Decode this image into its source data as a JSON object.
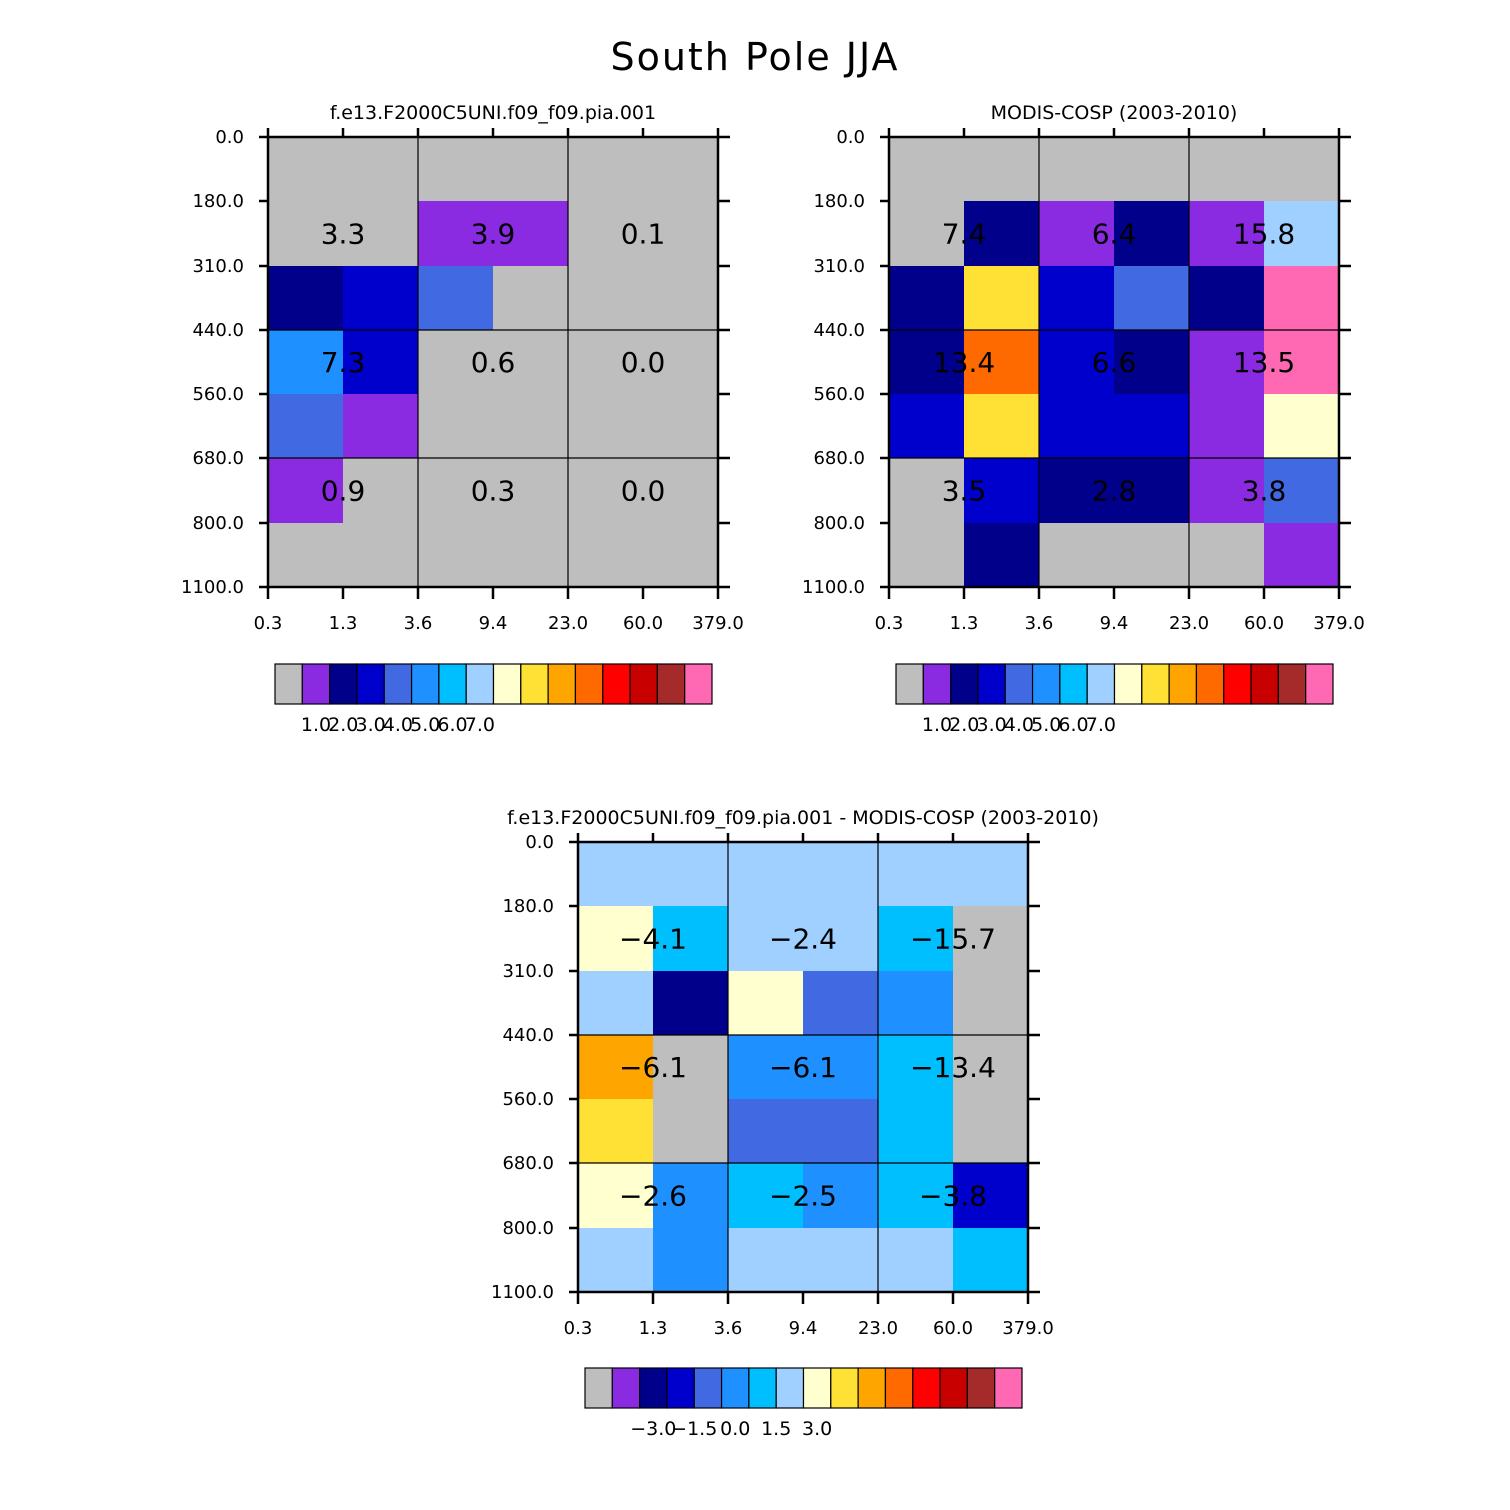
{
  "figure": {
    "title": "South Pole JJA"
  },
  "palette": {
    "colors": [
      "#bebebe",
      "#8a2be2",
      "#00008b",
      "#0000cd",
      "#4169e1",
      "#1e90ff",
      "#00bfff",
      "#a0d0ff",
      "#ffffd0",
      "#ffe135",
      "#ffa500",
      "#ff6a00",
      "#ff0000",
      "#c80000",
      "#a52a2a",
      "#ff69b4"
    ]
  },
  "chart_data": [
    {
      "type": "heatmap",
      "title": "f.e13.F2000C5UNI.f09_f09.pia.001",
      "x_ticks": [
        "0.3",
        "1.3",
        "3.6",
        "9.4",
        "23.0",
        "60.0",
        "379.0"
      ],
      "y_ticks": [
        "0.0",
        "180.0",
        "310.0",
        "440.0",
        "560.0",
        "680.0",
        "800.0",
        "1100.0"
      ],
      "cells": [
        [
          0,
          0,
          0,
          0,
          0,
          0
        ],
        [
          0,
          0,
          1,
          1,
          0,
          0
        ],
        [
          2,
          3,
          4,
          0,
          0,
          0
        ],
        [
          5,
          3,
          0,
          0,
          0,
          0
        ],
        [
          4,
          1,
          0,
          0,
          0,
          0
        ],
        [
          1,
          0,
          0,
          0,
          0,
          0
        ],
        [
          0,
          0,
          0,
          0,
          0,
          0
        ]
      ],
      "block_labels": [
        [
          "3.3",
          "3.9",
          "0.1"
        ],
        [
          "7.3",
          "0.6",
          "0.0"
        ],
        [
          "0.9",
          "0.3",
          "0.0"
        ]
      ],
      "colorbar": {
        "colors": [
          "#bebebe",
          "#8a2be2",
          "#00008b",
          "#0000cd",
          "#4169e1",
          "#1e90ff",
          "#00bfff",
          "#a0d0ff",
          "#ffffd0",
          "#ffe135",
          "#ffa500",
          "#ff6a00",
          "#ff0000",
          "#c80000",
          "#a52a2a",
          "#ff69b4"
        ],
        "labels": [
          "1.0",
          "2.0",
          "3.0",
          "4.0",
          "5.0",
          "6.0",
          "7.0"
        ]
      }
    },
    {
      "type": "heatmap",
      "title": "MODIS-COSP (2003-2010)",
      "x_ticks": [
        "0.3",
        "1.3",
        "3.6",
        "9.4",
        "23.0",
        "60.0",
        "379.0"
      ],
      "y_ticks": [
        "0.0",
        "180.0",
        "310.0",
        "440.0",
        "560.0",
        "680.0",
        "800.0",
        "1100.0"
      ],
      "cells": [
        [
          0,
          0,
          0,
          0,
          0,
          0
        ],
        [
          0,
          2,
          1,
          2,
          1,
          7
        ],
        [
          2,
          9,
          3,
          4,
          2,
          15
        ],
        [
          2,
          11,
          3,
          2,
          1,
          15
        ],
        [
          3,
          9,
          3,
          3,
          1,
          8
        ],
        [
          0,
          3,
          2,
          2,
          1,
          4
        ],
        [
          0,
          2,
          0,
          0,
          0,
          1
        ]
      ],
      "block_labels": [
        [
          "7.4",
          "6.4",
          "15.8"
        ],
        [
          "13.4",
          "6.6",
          "13.5"
        ],
        [
          "3.5",
          "2.8",
          "3.8"
        ]
      ],
      "colorbar": {
        "colors": [
          "#bebebe",
          "#8a2be2",
          "#00008b",
          "#0000cd",
          "#4169e1",
          "#1e90ff",
          "#00bfff",
          "#a0d0ff",
          "#ffffd0",
          "#ffe135",
          "#ffa500",
          "#ff6a00",
          "#ff0000",
          "#c80000",
          "#a52a2a",
          "#ff69b4"
        ],
        "labels": [
          "1.0",
          "2.0",
          "3.0",
          "4.0",
          "5.0",
          "6.0",
          "7.0"
        ]
      }
    },
    {
      "type": "heatmap",
      "title": "f.e13.F2000C5UNI.f09_f09.pia.001 - MODIS-COSP (2003-2010)",
      "x_ticks": [
        "0.3",
        "1.3",
        "3.6",
        "9.4",
        "23.0",
        "60.0",
        "379.0"
      ],
      "y_ticks": [
        "0.0",
        "180.0",
        "310.0",
        "440.0",
        "560.0",
        "680.0",
        "800.0",
        "1100.0"
      ],
      "cells": [
        [
          7,
          7,
          7,
          7,
          7,
          7
        ],
        [
          8,
          6,
          7,
          7,
          6,
          0
        ],
        [
          7,
          2,
          8,
          4,
          5,
          0
        ],
        [
          10,
          0,
          5,
          5,
          6,
          0
        ],
        [
          9,
          0,
          4,
          4,
          6,
          0
        ],
        [
          8,
          5,
          6,
          5,
          6,
          3
        ],
        [
          7,
          5,
          7,
          7,
          7,
          6
        ]
      ],
      "block_labels": [
        [
          "-4.1",
          "-2.4",
          "-15.7"
        ],
        [
          "-6.1",
          "-6.1",
          "-13.4"
        ],
        [
          "-2.6",
          "-2.5",
          "-3.8"
        ]
      ],
      "colorbar": {
        "colors": [
          "#bebebe",
          "#8a2be2",
          "#00008b",
          "#0000cd",
          "#4169e1",
          "#1e90ff",
          "#00bfff",
          "#a0d0ff",
          "#ffffd0",
          "#ffe135",
          "#ffa500",
          "#ff6a00",
          "#ff0000",
          "#c80000",
          "#a52a2a",
          "#ff69b4"
        ],
        "labels": [
          "-3.0",
          "-1.5",
          "0.0",
          "1.5",
          "3.0"
        ]
      }
    }
  ]
}
